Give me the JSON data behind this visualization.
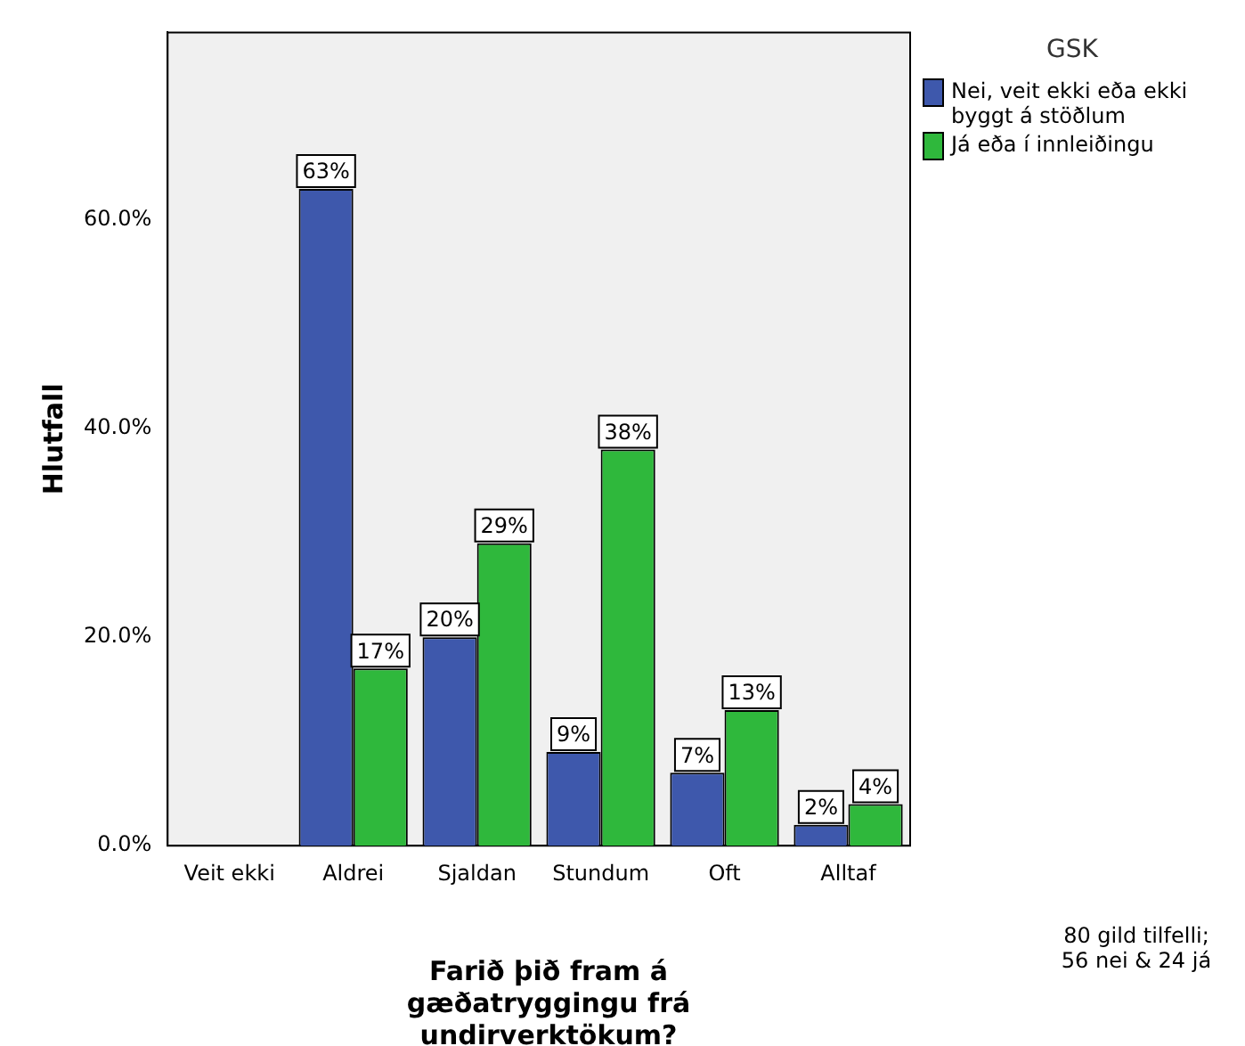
{
  "chart_data": {
    "type": "bar",
    "xlabel": "Farið þið fram á gæðatryggingu frá undirverktökum?",
    "ylabel": "Hlutfall",
    "legend_title": "GSK",
    "legend": "top right",
    "grid": false,
    "categories": [
      "Veit ekki",
      "Aldrei",
      "Sjaldan",
      "Stundum",
      "Oft",
      "Alltaf"
    ],
    "series": [
      {
        "name": "Nei, veit ekki eða ekki byggt á stöðlum",
        "color": "#3e58ac",
        "values": [
          null,
          63,
          20,
          9,
          7,
          2
        ],
        "value_labels": [
          null,
          "63%",
          "20%",
          "9%",
          "7%",
          "2%"
        ]
      },
      {
        "name": "Já eða í innleiðingu",
        "color": "#2fb83c",
        "values": [
          null,
          17,
          29,
          38,
          13,
          4
        ],
        "value_labels": [
          null,
          "17%",
          "29%",
          "38%",
          "13%",
          "4%"
        ]
      }
    ],
    "ylim": [
      0,
      78
    ],
    "yticks": [
      {
        "value": 0,
        "label": "0.0%"
      },
      {
        "value": 20,
        "label": "20.0%"
      },
      {
        "value": 40,
        "label": "40.0%"
      },
      {
        "value": 60,
        "label": "60.0%"
      }
    ],
    "annotations": [
      "80 gild tilfelli; 56 nei & 24 já"
    ]
  }
}
